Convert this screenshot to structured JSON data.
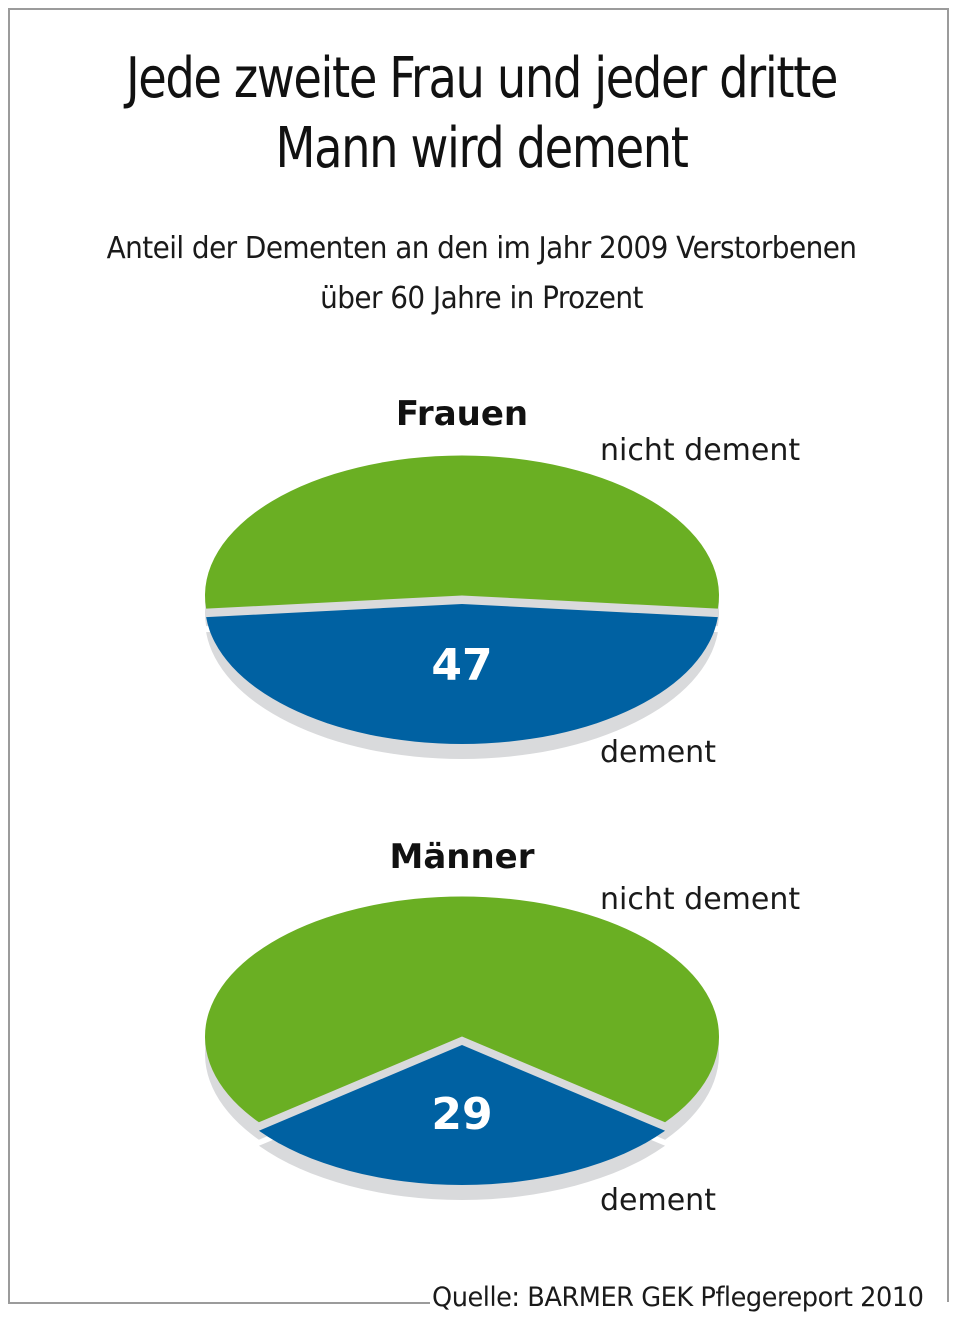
{
  "title_lines": [
    "Jede zweite Frau und jeder dritte",
    "Mann wird dement"
  ],
  "subtitle_lines": [
    "Anteil der Dementen an den im Jahr 2009 Verstorbenen",
    "über 60 Jahre in Prozent"
  ],
  "source": "Quelle: BARMER GEK Pflegereport 2010",
  "colors": {
    "dement": "#0061A2",
    "nicht_dement": "#6AAF23",
    "separator": "#D9DADC",
    "frame": "#9B9B9B"
  },
  "chart_data": [
    {
      "type": "pie",
      "title": "Frauen",
      "unit": "percent",
      "slices": [
        {
          "label": "nicht dement",
          "value": 53,
          "value_shown": false,
          "color": "#6AAF23"
        },
        {
          "label": "dement",
          "value": 47,
          "value_shown": true,
          "display_value": "47",
          "color": "#0061A2"
        }
      ],
      "style": "3d-exploded"
    },
    {
      "type": "pie",
      "title": "Männer",
      "unit": "percent",
      "slices": [
        {
          "label": "nicht dement",
          "value": 71,
          "value_shown": false,
          "color": "#6AAF23"
        },
        {
          "label": "dement",
          "value": 29,
          "value_shown": true,
          "display_value": "29",
          "color": "#0061A2"
        }
      ],
      "style": "3d-exploded"
    }
  ]
}
